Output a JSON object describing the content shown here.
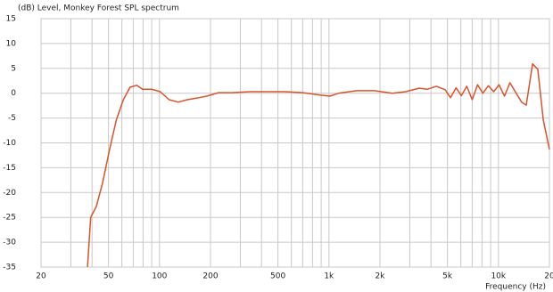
{
  "chart_data": {
    "type": "line",
    "title": "(dB)  Level, Monkey Forest SPL spectrum",
    "xlabel": "Frequency  (Hz)",
    "xscale": "log",
    "xlim": [
      20,
      20000
    ],
    "ylim": [
      -35,
      15
    ],
    "xticks": [
      20,
      50,
      100,
      200,
      500,
      {
        "value": 1000,
        "label": "1k"
      },
      {
        "value": 2000,
        "label": "2k"
      },
      {
        "value": 5000,
        "label": "5k"
      },
      {
        "value": 10000,
        "label": "10k"
      },
      {
        "value": 20000,
        "label": "20"
      }
    ],
    "yticks": [
      -35,
      -30,
      -25,
      -20,
      -15,
      -10,
      -5,
      0,
      5,
      10,
      15
    ],
    "xgrid": [
      20,
      30,
      40,
      50,
      60,
      70,
      80,
      90,
      100,
      200,
      300,
      400,
      500,
      600,
      700,
      800,
      900,
      1000,
      2000,
      3000,
      4000,
      5000,
      6000,
      7000,
      8000,
      9000,
      10000,
      20000
    ],
    "grid": true,
    "series": [
      {
        "color": "#d9532c",
        "x": [
          37.6,
          39.3,
          42.4,
          46.2,
          50.5,
          55.6,
          61.2,
          67,
          73.3,
          79.4,
          89.8,
          101,
          114,
          129,
          146,
          165,
          190,
          223,
          267,
          340,
          432,
          551,
          702,
          895,
          1012,
          1144,
          1458,
          1857,
          2365,
          2838,
          3398,
          3827,
          4307,
          4852,
          5218,
          5620,
          6046,
          6500,
          7000,
          7530,
          8100,
          8715,
          9380,
          10090,
          10860,
          11690,
          12570,
          13700,
          14600,
          15900,
          17090,
          18390,
          20000
        ],
        "values": [
          -35,
          -25,
          -22.8,
          -18,
          -11.7,
          -5.4,
          -1.3,
          1.2,
          1.6,
          0.8,
          0.8,
          0.3,
          -1.3,
          -1.8,
          -1.3,
          -1,
          -0.6,
          0.1,
          0.1,
          0.3,
          0.3,
          0.3,
          0.1,
          -0.4,
          -0.6,
          0,
          0.5,
          0.5,
          0,
          0.3,
          1,
          0.8,
          1.4,
          0.7,
          -0.9,
          1.1,
          -0.5,
          1.4,
          -1.3,
          1.7,
          0,
          1.5,
          0.3,
          1.7,
          -0.6,
          2.1,
          0.3,
          -1.8,
          -2.4,
          5.9,
          4.8,
          -5.4,
          -11.3
        ]
      }
    ]
  }
}
